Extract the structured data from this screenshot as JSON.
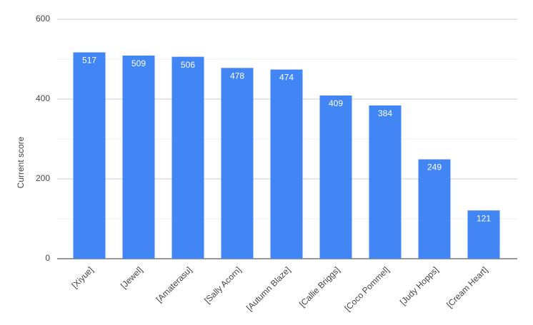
{
  "chart_data": {
    "type": "bar",
    "ylabel": "Current score",
    "categories": [
      "[Xiyue]",
      "[Jewel]",
      "[Amaterasu]",
      "[Sally Acorn]",
      "[Autumn Blaze]",
      "[Callie Briggs]",
      "[Coco Pommel]",
      "[Judy Hopps]",
      "[Cream Heart]"
    ],
    "values": [
      517,
      509,
      506,
      478,
      474,
      409,
      384,
      249,
      121
    ],
    "color": "#4285f4",
    "ylim": [
      0,
      600
    ],
    "yticks": [
      0,
      200,
      400,
      600
    ],
    "minor_yticks": [
      100,
      300,
      500
    ],
    "grid": true
  }
}
